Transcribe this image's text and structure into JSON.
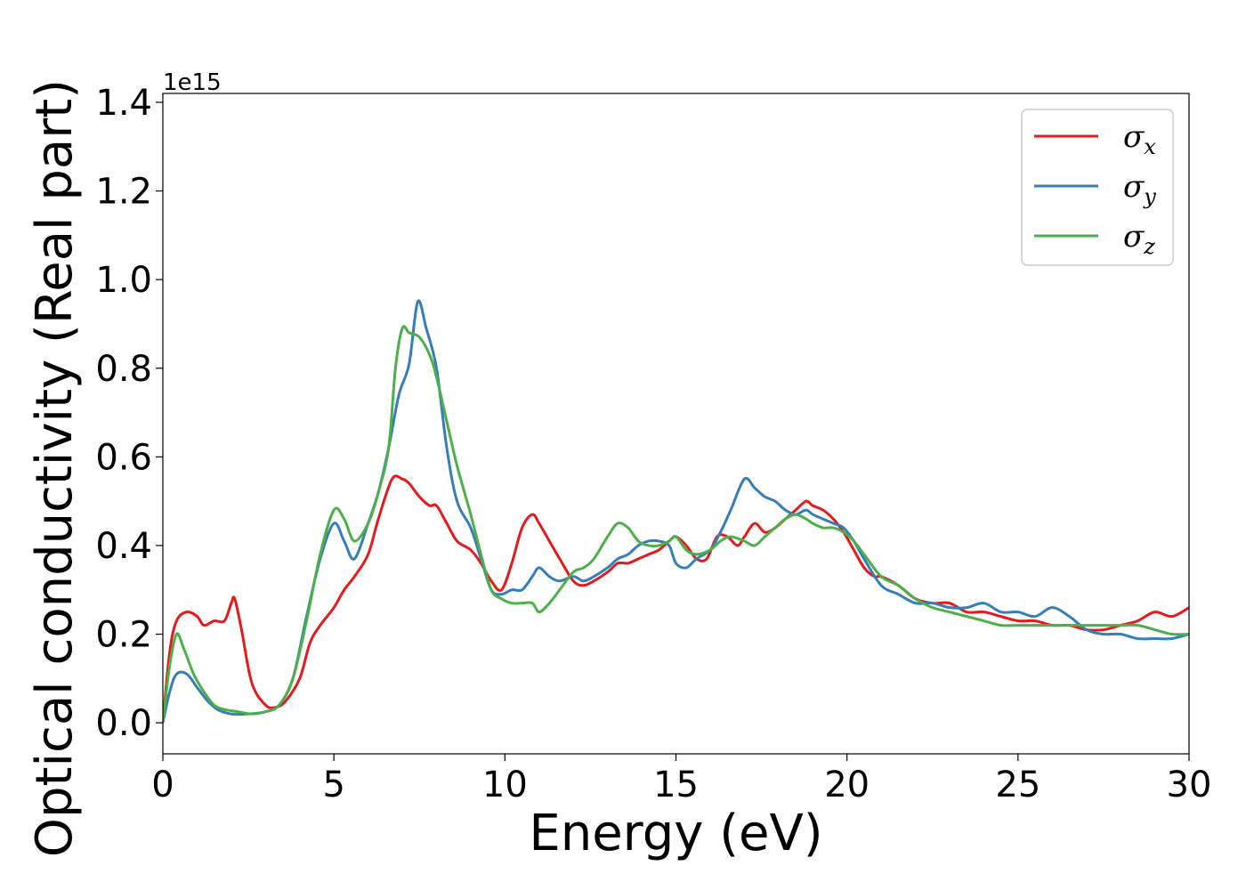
{
  "chart_data": {
    "type": "line",
    "xlabel": "Energy (eV)",
    "ylabel": "Optical conductivity (Real part)",
    "y_offset_label": "1e15",
    "xlim": [
      0,
      30
    ],
    "ylim": [
      -0.07,
      1.42
    ],
    "x_ticks": [
      0,
      5,
      10,
      15,
      20,
      25,
      30
    ],
    "x_tick_labels": [
      "0",
      "5",
      "10",
      "15",
      "20",
      "25",
      "30"
    ],
    "y_ticks": [
      0.0,
      0.2,
      0.4,
      0.6,
      0.8,
      1.0,
      1.2,
      1.4
    ],
    "y_tick_labels": [
      "0.0",
      "0.2",
      "0.4",
      "0.6",
      "0.8",
      "1.0",
      "1.2",
      "1.4"
    ],
    "grid": false,
    "legend_position": "top-right",
    "series": [
      {
        "name": "σx",
        "legend_symbol": "σ",
        "legend_subscript": "x",
        "color": "#e41a1c",
        "x": [
          0,
          0.2,
          0.4,
          0.7,
          1.0,
          1.2,
          1.5,
          1.8,
          2.0,
          2.1,
          2.3,
          2.6,
          3.0,
          3.3,
          3.6,
          4.0,
          4.3,
          4.6,
          5.0,
          5.3,
          5.6,
          6.0,
          6.3,
          6.7,
          7.0,
          7.2,
          7.5,
          7.8,
          8.0,
          8.3,
          8.6,
          9.0,
          9.3,
          9.6,
          9.9,
          10.2,
          10.5,
          10.8,
          11.0,
          11.3,
          11.6,
          12.0,
          12.3,
          12.6,
          13.0,
          13.3,
          13.6,
          13.9,
          14.2,
          14.5,
          14.8,
          15.0,
          15.3,
          15.6,
          15.9,
          16.2,
          16.5,
          16.8,
          17.0,
          17.3,
          17.6,
          17.9,
          18.2,
          18.5,
          18.8,
          19.0,
          19.3,
          19.6,
          19.9,
          20.2,
          20.5,
          20.8,
          21.0,
          21.5,
          22.0,
          22.5,
          23.0,
          23.5,
          24.0,
          24.5,
          25.0,
          25.5,
          26.0,
          26.5,
          27.0,
          27.5,
          28.0,
          28.5,
          29.0,
          29.5,
          30.0
        ],
        "y": [
          0.0,
          0.16,
          0.23,
          0.25,
          0.24,
          0.22,
          0.23,
          0.23,
          0.27,
          0.28,
          0.21,
          0.09,
          0.04,
          0.035,
          0.05,
          0.1,
          0.18,
          0.22,
          0.26,
          0.3,
          0.33,
          0.38,
          0.46,
          0.55,
          0.55,
          0.54,
          0.51,
          0.49,
          0.49,
          0.45,
          0.41,
          0.39,
          0.36,
          0.32,
          0.3,
          0.36,
          0.44,
          0.47,
          0.45,
          0.41,
          0.37,
          0.32,
          0.31,
          0.32,
          0.34,
          0.36,
          0.36,
          0.37,
          0.38,
          0.39,
          0.41,
          0.42,
          0.4,
          0.37,
          0.37,
          0.42,
          0.42,
          0.4,
          0.42,
          0.45,
          0.43,
          0.44,
          0.46,
          0.48,
          0.5,
          0.49,
          0.48,
          0.46,
          0.43,
          0.39,
          0.35,
          0.33,
          0.33,
          0.31,
          0.28,
          0.27,
          0.27,
          0.25,
          0.25,
          0.24,
          0.23,
          0.23,
          0.22,
          0.22,
          0.21,
          0.21,
          0.22,
          0.23,
          0.25,
          0.24,
          0.26
        ]
      },
      {
        "name": "σy",
        "legend_symbol": "σ",
        "legend_subscript": "y",
        "color": "#377eb8",
        "x": [
          0,
          0.2,
          0.4,
          0.7,
          1.0,
          1.3,
          1.6,
          2.0,
          2.5,
          3.0,
          3.4,
          3.8,
          4.2,
          4.6,
          5.0,
          5.3,
          5.6,
          6.0,
          6.3,
          6.6,
          6.9,
          7.2,
          7.45,
          7.7,
          8.0,
          8.3,
          8.6,
          9.0,
          9.3,
          9.6,
          9.9,
          10.2,
          10.5,
          10.8,
          11.0,
          11.3,
          11.6,
          12.0,
          12.3,
          12.6,
          13.0,
          13.3,
          13.6,
          13.9,
          14.2,
          14.5,
          14.8,
          15.0,
          15.3,
          15.6,
          16.0,
          16.3,
          16.6,
          17.0,
          17.3,
          17.6,
          17.9,
          18.2,
          18.5,
          18.8,
          19.0,
          19.3,
          19.6,
          19.9,
          20.2,
          20.5,
          21.0,
          21.5,
          22.0,
          22.5,
          23.0,
          23.5,
          24.0,
          24.5,
          25.0,
          25.5,
          26.0,
          26.5,
          27.0,
          27.5,
          28.0,
          28.5,
          29.0,
          29.5,
          30.0
        ],
        "y": [
          0.0,
          0.07,
          0.11,
          0.11,
          0.08,
          0.05,
          0.03,
          0.02,
          0.02,
          0.025,
          0.04,
          0.1,
          0.24,
          0.37,
          0.45,
          0.41,
          0.37,
          0.45,
          0.52,
          0.62,
          0.74,
          0.81,
          0.95,
          0.89,
          0.8,
          0.62,
          0.5,
          0.44,
          0.37,
          0.3,
          0.29,
          0.3,
          0.3,
          0.33,
          0.35,
          0.33,
          0.32,
          0.33,
          0.32,
          0.33,
          0.35,
          0.37,
          0.38,
          0.4,
          0.41,
          0.41,
          0.4,
          0.36,
          0.35,
          0.37,
          0.39,
          0.43,
          0.48,
          0.55,
          0.53,
          0.51,
          0.5,
          0.48,
          0.47,
          0.48,
          0.47,
          0.46,
          0.45,
          0.44,
          0.41,
          0.37,
          0.31,
          0.29,
          0.27,
          0.27,
          0.26,
          0.26,
          0.27,
          0.25,
          0.25,
          0.24,
          0.26,
          0.24,
          0.21,
          0.2,
          0.2,
          0.19,
          0.19,
          0.19,
          0.2
        ]
      },
      {
        "name": "σz",
        "legend_symbol": "σ",
        "legend_subscript": "z",
        "color": "#4daf4a",
        "x": [
          0,
          0.2,
          0.4,
          0.6,
          0.9,
          1.2,
          1.5,
          1.8,
          2.2,
          2.6,
          3.0,
          3.4,
          3.8,
          4.2,
          4.6,
          5.0,
          5.3,
          5.6,
          6.0,
          6.3,
          6.6,
          6.8,
          7.0,
          7.2,
          7.5,
          7.8,
          8.0,
          8.3,
          8.6,
          9.0,
          9.3,
          9.6,
          9.9,
          10.2,
          10.5,
          10.8,
          11.0,
          11.3,
          11.6,
          12.0,
          12.3,
          12.6,
          13.0,
          13.3,
          13.6,
          13.9,
          14.2,
          14.5,
          14.8,
          15.0,
          15.3,
          15.6,
          16.0,
          16.3,
          16.6,
          17.0,
          17.3,
          17.6,
          17.9,
          18.2,
          18.5,
          18.8,
          19.0,
          19.3,
          19.6,
          19.9,
          20.2,
          20.5,
          21.0,
          21.5,
          22.0,
          22.5,
          23.0,
          23.5,
          24.0,
          24.5,
          25.0,
          25.5,
          26.0,
          26.5,
          27.0,
          27.5,
          28.0,
          28.5,
          29.0,
          29.5,
          30.0
        ],
        "y": [
          0.0,
          0.13,
          0.2,
          0.17,
          0.11,
          0.07,
          0.04,
          0.03,
          0.025,
          0.02,
          0.025,
          0.04,
          0.1,
          0.23,
          0.38,
          0.48,
          0.46,
          0.41,
          0.45,
          0.52,
          0.62,
          0.8,
          0.89,
          0.88,
          0.87,
          0.83,
          0.78,
          0.68,
          0.58,
          0.47,
          0.38,
          0.3,
          0.28,
          0.27,
          0.27,
          0.27,
          0.25,
          0.27,
          0.3,
          0.34,
          0.35,
          0.37,
          0.42,
          0.45,
          0.44,
          0.41,
          0.4,
          0.4,
          0.41,
          0.42,
          0.39,
          0.38,
          0.39,
          0.41,
          0.42,
          0.41,
          0.4,
          0.42,
          0.44,
          0.46,
          0.47,
          0.46,
          0.45,
          0.44,
          0.44,
          0.43,
          0.41,
          0.38,
          0.33,
          0.31,
          0.28,
          0.26,
          0.25,
          0.24,
          0.23,
          0.22,
          0.22,
          0.22,
          0.22,
          0.22,
          0.22,
          0.22,
          0.22,
          0.22,
          0.21,
          0.2,
          0.2
        ]
      }
    ]
  }
}
